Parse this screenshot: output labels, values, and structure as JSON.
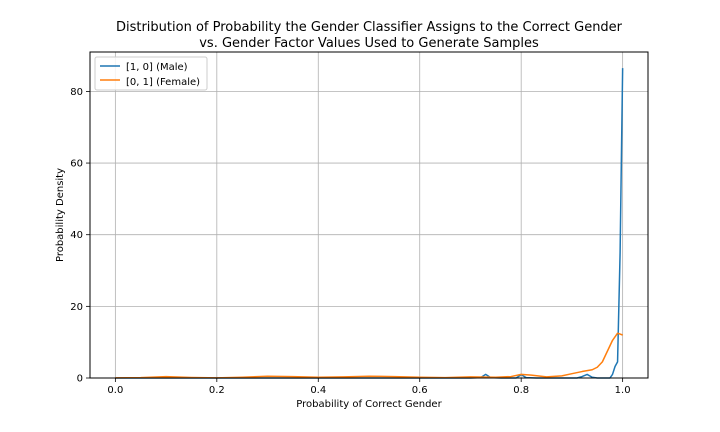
{
  "chart_data": {
    "type": "line",
    "title_line1": "Distribution of Probability the Gender Classifier Assigns to the Correct Gender",
    "title_line2": "vs. Gender Factor Values Used to Generate Samples",
    "xlabel": "Probability of Correct Gender",
    "ylabel": "Probability Density",
    "xlim": [
      -0.05,
      1.05
    ],
    "ylim": [
      0,
      91
    ],
    "xticks": [
      0.0,
      0.2,
      0.4,
      0.6,
      0.8,
      1.0
    ],
    "xtick_labels": [
      "0.0",
      "0.2",
      "0.4",
      "0.6",
      "0.8",
      "1.0"
    ],
    "yticks": [
      0,
      20,
      40,
      60,
      80
    ],
    "ytick_labels": [
      "0",
      "20",
      "40",
      "60",
      "80"
    ],
    "grid": true,
    "legend_position": "top-left",
    "series": [
      {
        "name": "[1, 0] (Male)",
        "color": "#1f77b4",
        "points": [
          [
            0.0,
            0
          ],
          [
            0.7,
            0
          ],
          [
            0.72,
            0.1
          ],
          [
            0.73,
            1.0
          ],
          [
            0.74,
            0.1
          ],
          [
            0.76,
            0
          ],
          [
            0.79,
            0
          ],
          [
            0.8,
            0.9
          ],
          [
            0.81,
            0.1
          ],
          [
            0.83,
            0
          ],
          [
            0.91,
            0
          ],
          [
            0.92,
            0.4
          ],
          [
            0.93,
            1.0
          ],
          [
            0.94,
            0.2
          ],
          [
            0.95,
            0
          ],
          [
            0.975,
            0
          ],
          [
            0.98,
            1.0
          ],
          [
            0.985,
            3.2
          ],
          [
            0.99,
            4.5
          ],
          [
            0.995,
            35.0
          ],
          [
            1.0,
            86.5
          ]
        ]
      },
      {
        "name": "[0, 1] (Female)",
        "color": "#ff7f0e",
        "points": [
          [
            0.0,
            0.05
          ],
          [
            0.05,
            0.1
          ],
          [
            0.1,
            0.4
          ],
          [
            0.15,
            0.15
          ],
          [
            0.2,
            0.05
          ],
          [
            0.25,
            0.2
          ],
          [
            0.3,
            0.5
          ],
          [
            0.35,
            0.4
          ],
          [
            0.4,
            0.2
          ],
          [
            0.45,
            0.3
          ],
          [
            0.5,
            0.5
          ],
          [
            0.55,
            0.4
          ],
          [
            0.6,
            0.2
          ],
          [
            0.65,
            0.1
          ],
          [
            0.7,
            0.3
          ],
          [
            0.75,
            0.2
          ],
          [
            0.78,
            0.4
          ],
          [
            0.8,
            1.0
          ],
          [
            0.82,
            0.8
          ],
          [
            0.85,
            0.3
          ],
          [
            0.88,
            0.6
          ],
          [
            0.9,
            1.2
          ],
          [
            0.92,
            1.8
          ],
          [
            0.94,
            2.3
          ],
          [
            0.95,
            3.0
          ],
          [
            0.96,
            4.5
          ],
          [
            0.97,
            7.5
          ],
          [
            0.98,
            10.5
          ],
          [
            0.99,
            12.5
          ],
          [
            1.0,
            12.0
          ]
        ]
      }
    ]
  }
}
